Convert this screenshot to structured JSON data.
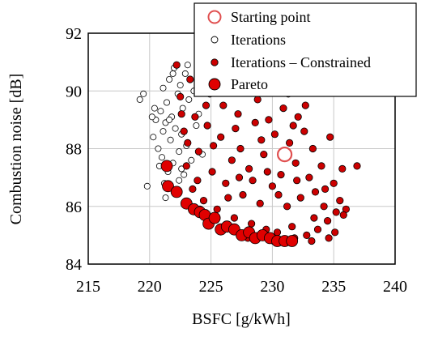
{
  "chart_data": {
    "type": "scatter",
    "xlabel": "BSFC [g/kWh]",
    "ylabel": "Combustion noise [dB]",
    "xlim": [
      215,
      240
    ],
    "ylim": [
      84,
      92
    ],
    "xticks": [
      215,
      220,
      225,
      230,
      235,
      240
    ],
    "yticks": [
      84,
      86,
      88,
      90,
      92
    ],
    "grid": true,
    "legend_position": "top-right",
    "colors": {
      "iterations_fill": "#ffffff",
      "constrained_fill": "#cc0000",
      "pareto_fill": "#e00000",
      "start_fill": "#ffffff",
      "start_edge": "#e05050"
    },
    "series": [
      {
        "name": "Starting point",
        "marker": "large-hollow-red-circle",
        "points": [
          [
            231.0,
            87.8
          ]
        ]
      },
      {
        "name": "Iterations",
        "marker": "small-white-circle",
        "points": [
          [
            219.2,
            89.7
          ],
          [
            219.5,
            89.9
          ],
          [
            219.8,
            86.7
          ],
          [
            220.3,
            88.4
          ],
          [
            220.5,
            89.0
          ],
          [
            220.7,
            88.0
          ],
          [
            220.9,
            89.3
          ],
          [
            221.0,
            87.7
          ],
          [
            221.1,
            90.1
          ],
          [
            221.2,
            86.8
          ],
          [
            221.3,
            88.9
          ],
          [
            221.4,
            89.6
          ],
          [
            221.5,
            87.2
          ],
          [
            221.6,
            90.4
          ],
          [
            221.7,
            88.3
          ],
          [
            221.8,
            89.1
          ],
          [
            221.9,
            87.5
          ],
          [
            222.0,
            90.8
          ],
          [
            222.1,
            88.7
          ],
          [
            222.2,
            86.5
          ],
          [
            222.3,
            89.9
          ],
          [
            222.4,
            87.9
          ],
          [
            222.5,
            90.2
          ],
          [
            222.6,
            88.5
          ],
          [
            222.7,
            89.4
          ],
          [
            222.8,
            87.1
          ],
          [
            222.9,
            90.6
          ],
          [
            223.0,
            88.1
          ],
          [
            223.2,
            89.7
          ],
          [
            223.4,
            87.6
          ],
          [
            223.6,
            90.0
          ],
          [
            223.8,
            88.8
          ],
          [
            224.0,
            89.2
          ],
          [
            224.3,
            87.8
          ],
          [
            224.6,
            90.3
          ],
          [
            220.4,
            89.4
          ],
          [
            220.8,
            87.4
          ],
          [
            221.3,
            86.3
          ],
          [
            221.9,
            90.6
          ],
          [
            222.4,
            86.9
          ],
          [
            223.1,
            90.9
          ],
          [
            222.6,
            87.3
          ],
          [
            221.1,
            88.6
          ],
          [
            220.2,
            89.1
          ],
          [
            221.6,
            89.0
          ]
        ]
      },
      {
        "name": "Iterations – Constrained",
        "marker": "small-red-circle",
        "points": [
          [
            222.2,
            90.9
          ],
          [
            222.5,
            89.8
          ],
          [
            222.8,
            88.6
          ],
          [
            223.0,
            87.4
          ],
          [
            223.3,
            90.4
          ],
          [
            223.5,
            86.6
          ],
          [
            223.7,
            89.1
          ],
          [
            224.0,
            87.9
          ],
          [
            224.2,
            90.7
          ],
          [
            224.4,
            86.2
          ],
          [
            224.7,
            88.8
          ],
          [
            224.9,
            89.9
          ],
          [
            225.1,
            87.2
          ],
          [
            225.3,
            90.2
          ],
          [
            225.5,
            85.9
          ],
          [
            225.8,
            88.4
          ],
          [
            226.0,
            89.5
          ],
          [
            226.2,
            86.8
          ],
          [
            226.5,
            90.8
          ],
          [
            226.7,
            87.6
          ],
          [
            226.9,
            85.6
          ],
          [
            227.2,
            89.2
          ],
          [
            227.4,
            88.0
          ],
          [
            227.6,
            86.4
          ],
          [
            227.9,
            90.0
          ],
          [
            228.1,
            87.3
          ],
          [
            228.3,
            85.4
          ],
          [
            228.6,
            88.9
          ],
          [
            228.8,
            89.7
          ],
          [
            229.0,
            86.1
          ],
          [
            229.3,
            87.8
          ],
          [
            229.5,
            85.2
          ],
          [
            229.7,
            89.0
          ],
          [
            230.0,
            86.7
          ],
          [
            230.2,
            88.5
          ],
          [
            230.4,
            85.1
          ],
          [
            230.7,
            87.1
          ],
          [
            230.9,
            89.4
          ],
          [
            231.2,
            86.0
          ],
          [
            231.4,
            88.2
          ],
          [
            231.6,
            85.3
          ],
          [
            231.9,
            87.5
          ],
          [
            232.1,
            89.1
          ],
          [
            232.3,
            86.3
          ],
          [
            232.6,
            88.6
          ],
          [
            232.8,
            85.0
          ],
          [
            233.0,
            87.0
          ],
          [
            233.3,
            88.0
          ],
          [
            233.5,
            86.5
          ],
          [
            233.7,
            85.2
          ],
          [
            234.0,
            87.4
          ],
          [
            234.2,
            86.0
          ],
          [
            234.5,
            85.5
          ],
          [
            234.7,
            88.4
          ],
          [
            235.0,
            86.8
          ],
          [
            235.2,
            85.8
          ],
          [
            235.5,
            86.2
          ],
          [
            235.7,
            87.3
          ],
          [
            236.0,
            85.9
          ],
          [
            236.9,
            87.4
          ],
          [
            223.1,
            88.2
          ],
          [
            223.9,
            86.9
          ],
          [
            224.6,
            89.5
          ],
          [
            225.2,
            88.1
          ],
          [
            225.9,
            90.5
          ],
          [
            226.4,
            86.3
          ],
          [
            227.0,
            88.7
          ],
          [
            227.7,
            90.4
          ],
          [
            228.4,
            86.9
          ],
          [
            229.1,
            88.3
          ],
          [
            229.8,
            90.3
          ],
          [
            230.5,
            86.4
          ],
          [
            231.3,
            89.9
          ],
          [
            232.0,
            86.9
          ],
          [
            232.7,
            89.5
          ],
          [
            233.4,
            85.6
          ],
          [
            234.3,
            86.6
          ],
          [
            235.1,
            85.1
          ],
          [
            235.8,
            85.7
          ],
          [
            222.6,
            89.2
          ],
          [
            224.1,
            85.9
          ],
          [
            226.1,
            85.3
          ],
          [
            228.0,
            84.9
          ],
          [
            230.1,
            84.8
          ],
          [
            231.8,
            84.9
          ],
          [
            233.2,
            84.8
          ],
          [
            234.6,
            84.9
          ],
          [
            227.3,
            87.0
          ],
          [
            229.6,
            87.2
          ],
          [
            231.7,
            88.8
          ]
        ]
      },
      {
        "name": "Pareto",
        "marker": "large-red-circle",
        "points": [
          [
            221.4,
            87.4
          ],
          [
            221.5,
            86.7
          ],
          [
            222.2,
            86.5
          ],
          [
            223.0,
            86.1
          ],
          [
            223.6,
            85.9
          ],
          [
            224.1,
            85.8
          ],
          [
            224.5,
            85.7
          ],
          [
            224.8,
            85.4
          ],
          [
            225.3,
            85.6
          ],
          [
            225.8,
            85.2
          ],
          [
            226.3,
            85.3
          ],
          [
            226.9,
            85.2
          ],
          [
            227.5,
            85.0
          ],
          [
            228.1,
            85.1
          ],
          [
            228.6,
            84.9
          ],
          [
            229.2,
            85.0
          ],
          [
            229.8,
            84.9
          ],
          [
            230.4,
            84.8
          ],
          [
            231.0,
            84.8
          ],
          [
            231.6,
            84.8
          ]
        ]
      }
    ]
  }
}
